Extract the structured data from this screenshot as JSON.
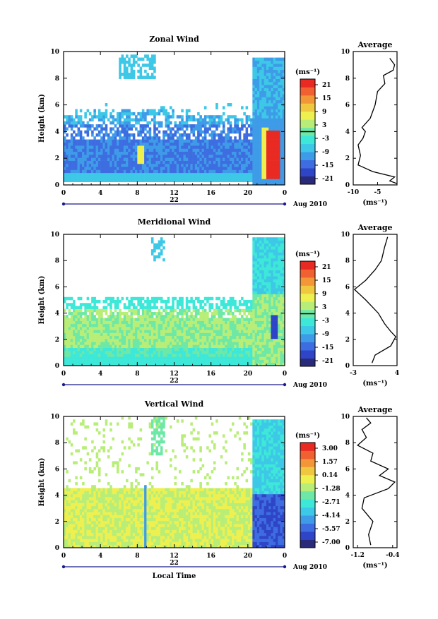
{
  "colors": {
    "scale": [
      "#2a2a7a",
      "#2f45c8",
      "#3d6de0",
      "#3e9be8",
      "#3cc8e6",
      "#3ee8d8",
      "#6ee8a6",
      "#b8ee78",
      "#eef050",
      "#f0c840",
      "#f29638",
      "#f06030",
      "#e82a22"
    ]
  },
  "chart_data": [
    {
      "type": "heatmap",
      "title": "Zonal Wind",
      "ylabel": "Height (km)",
      "xlim": [
        0,
        24
      ],
      "ylim": [
        0,
        10
      ],
      "x_ticks": [
        "0",
        "4",
        "8",
        "12",
        "16",
        "20",
        "0"
      ],
      "y_ticks": [
        "0",
        "2",
        "4",
        "6",
        "8",
        "10"
      ],
      "date_labels": {
        "day": "22",
        "month": "Aug 2010"
      },
      "colorbar": {
        "unit": "(ms⁻¹)",
        "ticks": [
          "21",
          "15",
          "9",
          "3",
          "-3",
          "-9",
          "-15",
          "-21"
        ]
      },
      "average": {
        "title": "Average",
        "xlabel": "(ms⁻¹)",
        "x_ticks": [
          "-10",
          "-5"
        ],
        "y_ticks": [
          "0",
          "2",
          "4",
          "6",
          "8",
          "10"
        ],
        "xlim": [
          -10,
          -1
        ],
        "profile": [
          [
            -1,
            0.1
          ],
          [
            -2.5,
            0.3
          ],
          [
            -1.5,
            0.6
          ],
          [
            -6,
            1.0
          ],
          [
            -9,
            1.5
          ],
          [
            -8.5,
            2.2
          ],
          [
            -9,
            3.0
          ],
          [
            -8,
            3.5
          ],
          [
            -7.5,
            4.0
          ],
          [
            -8.2,
            4.3
          ],
          [
            -6.5,
            5.0
          ],
          [
            -5.5,
            6.0
          ],
          [
            -5,
            7.0
          ],
          [
            -3.5,
            7.6
          ],
          [
            -3.8,
            8.2
          ],
          [
            -1.8,
            8.6
          ],
          [
            -1.5,
            9.0
          ],
          [
            -2.5,
            9.5
          ]
        ]
      }
    },
    {
      "type": "heatmap",
      "title": "Meridional Wind",
      "ylabel": "Height (km)",
      "xlim": [
        0,
        24
      ],
      "ylim": [
        0,
        10
      ],
      "x_ticks": [
        "0",
        "4",
        "8",
        "12",
        "16",
        "20",
        "0"
      ],
      "y_ticks": [
        "0",
        "2",
        "4",
        "6",
        "8",
        "10"
      ],
      "date_labels": {
        "day": "22",
        "month": "Aug 2010"
      },
      "colorbar": {
        "unit": "(ms⁻¹)",
        "ticks": [
          "21",
          "15",
          "9",
          "3",
          "-3",
          "-9",
          "-15",
          "-21"
        ]
      },
      "average": {
        "title": "Average",
        "xlabel": "(ms⁻¹)",
        "x_ticks": [
          "-3",
          "4"
        ],
        "y_ticks": [
          "0",
          "2",
          "4",
          "6",
          "8",
          "10"
        ],
        "xlim": [
          -3,
          4
        ],
        "profile": [
          [
            0,
            0.2
          ],
          [
            0.5,
            0.8
          ],
          [
            3,
            1.5
          ],
          [
            3.8,
            2.2
          ],
          [
            3,
            2.6
          ],
          [
            2,
            3.2
          ],
          [
            1,
            4.0
          ],
          [
            -1,
            5.0
          ],
          [
            -2.8,
            5.8
          ],
          [
            -1,
            6.5
          ],
          [
            0.5,
            7.3
          ],
          [
            1.5,
            8.0
          ],
          [
            2,
            9.0
          ],
          [
            2.5,
            9.8
          ]
        ]
      }
    },
    {
      "type": "heatmap",
      "title": "Vertical Wind",
      "ylabel": "Height (km)",
      "xlabel": "Local Time",
      "xlim": [
        0,
        24
      ],
      "ylim": [
        0,
        10
      ],
      "x_ticks": [
        "0",
        "4",
        "8",
        "12",
        "16",
        "20",
        "0"
      ],
      "y_ticks": [
        "0",
        "2",
        "4",
        "6",
        "8",
        "10"
      ],
      "date_labels": {
        "day": "22",
        "month": "Aug 2010"
      },
      "colorbar": {
        "unit": "(ms⁻¹)",
        "ticks": [
          "3.00",
          "1.57",
          "0.14",
          "-1.28",
          "-2.71",
          "-4.14",
          "-5.57",
          "-7.00"
        ]
      },
      "average": {
        "title": "Average",
        "xlabel": "(ms⁻¹)",
        "x_ticks": [
          "-1.2",
          "-0.4"
        ],
        "y_ticks": [
          "0",
          "2",
          "4",
          "6",
          "8",
          "10"
        ],
        "xlim": [
          -1.3,
          -0.3
        ],
        "profile": [
          [
            -0.9,
            0.2
          ],
          [
            -0.95,
            1.0
          ],
          [
            -0.85,
            2.0
          ],
          [
            -1.1,
            3.0
          ],
          [
            -1.05,
            3.8
          ],
          [
            -0.5,
            4.5
          ],
          [
            -0.35,
            5.0
          ],
          [
            -0.7,
            5.5
          ],
          [
            -0.5,
            6.0
          ],
          [
            -0.9,
            6.6
          ],
          [
            -0.85,
            7.2
          ],
          [
            -1.2,
            7.8
          ],
          [
            -1.0,
            8.4
          ],
          [
            -1.1,
            9.0
          ],
          [
            -0.9,
            9.5
          ],
          [
            -1.0,
            9.9
          ]
        ]
      }
    }
  ]
}
